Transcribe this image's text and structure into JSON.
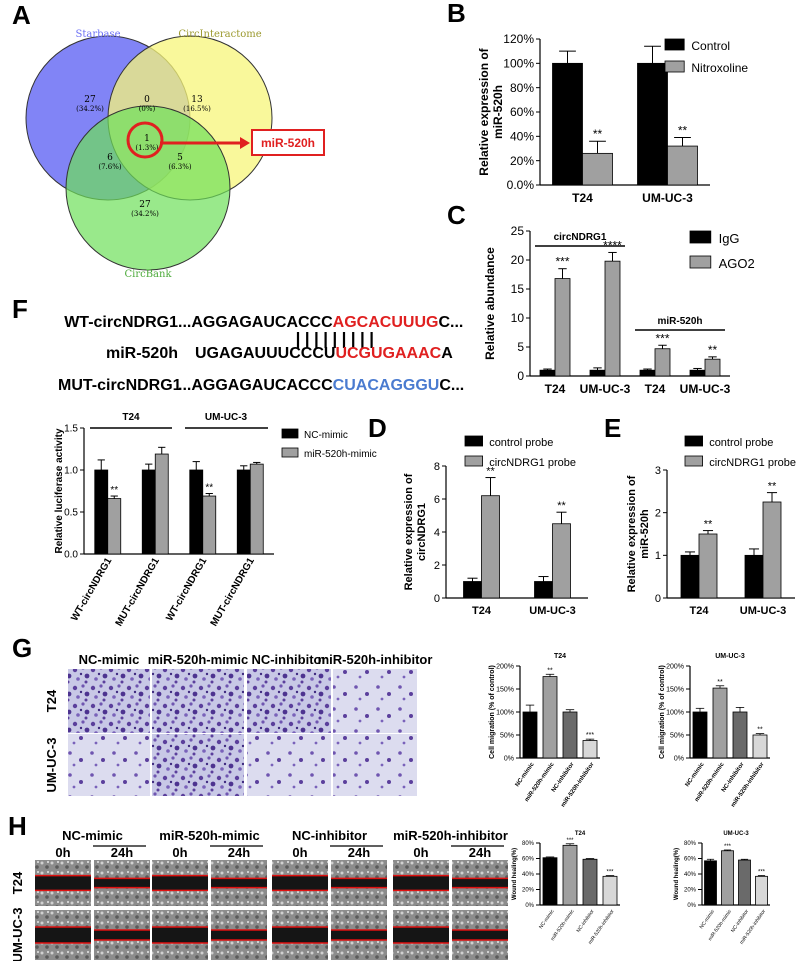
{
  "panels": {
    "A": "A",
    "B": "B",
    "C": "C",
    "D": "D",
    "E": "E",
    "F": "F",
    "G": "G",
    "H": "H"
  },
  "venn": {
    "sets": [
      "Starbase",
      "CircInteractome",
      "CircBank"
    ],
    "regions": {
      "starbase_only": {
        "count": "27",
        "pct": "(34.2%)"
      },
      "circinter_only": {
        "count": "13",
        "pct": "(16.5%)"
      },
      "circbank_only": {
        "count": "27",
        "pct": "(34.2%)"
      },
      "star_inter": {
        "count": "0",
        "pct": "(0%)"
      },
      "star_bank": {
        "count": "6",
        "pct": "(7.6%)"
      },
      "inter_bank": {
        "count": "5",
        "pct": "(6.3%)"
      },
      "all": {
        "count": "1",
        "pct": "(1.3%)"
      }
    },
    "callout": "miR-520h",
    "colors": {
      "starbase": "#6b6ff5",
      "circinter": "#f7f57a",
      "circbank": "#6ee05a",
      "callout": "#e02020"
    }
  },
  "seq": {
    "wt_label": "WT-circNDRG1",
    "wt_prefix": "...AGGAGAUCACCC",
    "wt_site": "AGCACUUUG",
    "wt_suffix": "C...",
    "mir_label": "miR-520h",
    "mir_prefix": "UGAGAUUUCCCU",
    "mir_site": "UCGUGAAAC",
    "mir_suffix": "A",
    "mut_label": "MUT-circNDRG1",
    "mut_prefix": "...AGGAGAUCACCC",
    "mut_site": "CUACAGGGU",
    "mut_suffix": "C...",
    "red": "#e02020",
    "blue": "#4a7bd0"
  },
  "chart_data": [
    {
      "id": "B",
      "type": "bar",
      "categories": [
        "T24",
        "UM-UC-3"
      ],
      "ylabel": "Relative expression of miR-520h",
      "ylim": [
        0,
        1.2
      ],
      "yticks": [
        "0.0%",
        "20%",
        "40%",
        "60%",
        "80%",
        "100%",
        "120%"
      ],
      "series": [
        {
          "name": "Control",
          "values": [
            1.0,
            1.0
          ],
          "err": [
            0.1,
            0.14
          ],
          "color": "#000000"
        },
        {
          "name": "Nitroxoline",
          "values": [
            0.26,
            0.32
          ],
          "err": [
            0.1,
            0.07
          ],
          "color": "#a0a0a0",
          "sig": [
            "**",
            "**"
          ]
        }
      ]
    },
    {
      "id": "C",
      "type": "bar",
      "categories": [
        "T24",
        "UM-UC-3",
        "T24",
        "UM-UC-3"
      ],
      "ylabel": "Relative abundance",
      "ylim": [
        0,
        25
      ],
      "yticks": [
        "0",
        "5",
        "10",
        "15",
        "20",
        "25"
      ],
      "groups": [
        "circNDRG1",
        "miR-520h"
      ],
      "series": [
        {
          "name": "IgG",
          "values": [
            1.0,
            1.0,
            1.0,
            1.0
          ],
          "err": [
            0.2,
            0.4,
            0.2,
            0.3
          ],
          "color": "#000000"
        },
        {
          "name": "AGO2",
          "values": [
            16.8,
            19.8,
            4.7,
            2.9
          ],
          "err": [
            1.7,
            1.5,
            0.6,
            0.4
          ],
          "color": "#a0a0a0",
          "sig": [
            "***",
            "****",
            "***",
            "**"
          ]
        }
      ]
    },
    {
      "id": "D",
      "type": "bar",
      "categories": [
        "T24",
        "UM-UC-3"
      ],
      "ylabel": "Relative expression of circNDRG1",
      "ylim": [
        0,
        8
      ],
      "yticks": [
        "0",
        "2",
        "4",
        "6",
        "8"
      ],
      "series": [
        {
          "name": "control probe",
          "values": [
            1.0,
            1.0
          ],
          "err": [
            0.2,
            0.3
          ],
          "color": "#000000"
        },
        {
          "name": "circNDRG1 probe",
          "values": [
            6.2,
            4.5
          ],
          "err": [
            1.1,
            0.7
          ],
          "color": "#a0a0a0",
          "sig": [
            "**",
            "**"
          ]
        }
      ]
    },
    {
      "id": "E",
      "type": "bar",
      "categories": [
        "T24",
        "UM-UC-3"
      ],
      "ylabel": "Relative expression of miR-520h",
      "ylim": [
        0,
        3
      ],
      "yticks": [
        "0",
        "1",
        "2",
        "3"
      ],
      "series": [
        {
          "name": "control probe",
          "values": [
            1.0,
            1.0
          ],
          "err": [
            0.08,
            0.15
          ],
          "color": "#000000"
        },
        {
          "name": "circNDRG1 probe",
          "values": [
            1.5,
            2.25
          ],
          "err": [
            0.08,
            0.22
          ],
          "color": "#a0a0a0",
          "sig": [
            "**",
            "**"
          ]
        }
      ]
    },
    {
      "id": "F",
      "type": "bar",
      "categories": [
        "WT-circNDRG1",
        "MUT-circNDRG1",
        "WT-circNDRG1",
        "MUT-circNDRG1"
      ],
      "ylabel": "Relative luciferase activity",
      "ylim": [
        0,
        1.5
      ],
      "yticks": [
        "0.0",
        "0.5",
        "1.0",
        "1.5"
      ],
      "groups": [
        "T24",
        "UM-UC-3"
      ],
      "series": [
        {
          "name": "NC-mimic",
          "values": [
            1.0,
            1.0,
            1.0,
            1.0
          ],
          "err": [
            0.12,
            0.07,
            0.1,
            0.05
          ],
          "color": "#000000"
        },
        {
          "name": "miR-520h-mimic",
          "values": [
            0.66,
            1.19,
            0.69,
            1.07
          ],
          "err": [
            0.03,
            0.08,
            0.03,
            0.02
          ],
          "color": "#a0a0a0",
          "sig": [
            "**",
            "",
            "**",
            ""
          ]
        }
      ]
    },
    {
      "id": "G1",
      "type": "bar",
      "title": "T24",
      "categories": [
        "NC-mimic",
        "miR-520h-mimic",
        "NC-inhibitor",
        "miR-520h-inhibitor"
      ],
      "ylabel": "Cell migration (% of control)",
      "ylim": [
        0,
        2
      ],
      "yticks": [
        "0%",
        "50%",
        "100%",
        "150%",
        "200%"
      ],
      "values": [
        1.0,
        1.77,
        1.0,
        0.38
      ],
      "err": [
        0.15,
        0.05,
        0.05,
        0.03
      ],
      "colors": [
        "#000000",
        "#a0a0a0",
        "#6a6a6a",
        "#d8d8d8"
      ],
      "sig": [
        "",
        "**",
        "",
        "***"
      ]
    },
    {
      "id": "G2",
      "type": "bar",
      "title": "UM-UC-3",
      "categories": [
        "NC-mimic",
        "miR-520h-mimic",
        "NC-inhibitor",
        "miR-520h-inhibitor"
      ],
      "ylabel": "Cell migration (% of control)",
      "ylim": [
        0,
        2
      ],
      "yticks": [
        "0%",
        "50%",
        "100%",
        "150%",
        "200%"
      ],
      "values": [
        1.0,
        1.52,
        1.0,
        0.5
      ],
      "err": [
        0.08,
        0.05,
        0.1,
        0.03
      ],
      "colors": [
        "#000000",
        "#a0a0a0",
        "#6a6a6a",
        "#d8d8d8"
      ],
      "sig": [
        "",
        "**",
        "",
        "**"
      ]
    },
    {
      "id": "H1",
      "type": "bar",
      "title": "T24",
      "categories": [
        "NC-mimic",
        "miR-520h-mimic",
        "NC-inhibitor",
        "miR-520h-inhibitor"
      ],
      "ylabel": "Wound healing(%)",
      "ylim": [
        0,
        0.8
      ],
      "yticks": [
        "0%",
        "20%",
        "40%",
        "60%",
        "80%"
      ],
      "values": [
        0.61,
        0.77,
        0.59,
        0.37
      ],
      "err": [
        0.01,
        0.02,
        0.01,
        0.01
      ],
      "colors": [
        "#000000",
        "#a0a0a0",
        "#6a6a6a",
        "#d8d8d8"
      ],
      "sig": [
        "",
        "***",
        "",
        "***"
      ]
    },
    {
      "id": "H2",
      "type": "bar",
      "title": "UM-UC-3",
      "categories": [
        "NC-mimic",
        "miR-520h-mimic",
        "NC-inhibitor",
        "miR-520h-inhibitor"
      ],
      "ylabel": "Wound healing(%)",
      "ylim": [
        0,
        0.8
      ],
      "yticks": [
        "0%",
        "20%",
        "40%",
        "60%",
        "80%"
      ],
      "values": [
        0.57,
        0.7,
        0.58,
        0.37
      ],
      "err": [
        0.02,
        0.01,
        0.01,
        0.01
      ],
      "colors": [
        "#000000",
        "#a0a0a0",
        "#6a6a6a",
        "#d8d8d8"
      ],
      "sig": [
        "",
        "***",
        "",
        "***"
      ]
    }
  ],
  "micro_g": {
    "columns": [
      "NC-mimic",
      "miR-520h-mimic",
      "NC-inhibitor",
      "miR-520h-inhibitor"
    ],
    "rows": [
      "T24",
      "UM-UC-3"
    ]
  },
  "micro_h": {
    "columns": [
      "NC-mimic",
      "miR-520h-mimic",
      "NC-inhibitor",
      "miR-520h-inhibitor"
    ],
    "rows": [
      "T24",
      "UM-UC-3"
    ],
    "times": [
      "0h",
      "24h"
    ]
  }
}
